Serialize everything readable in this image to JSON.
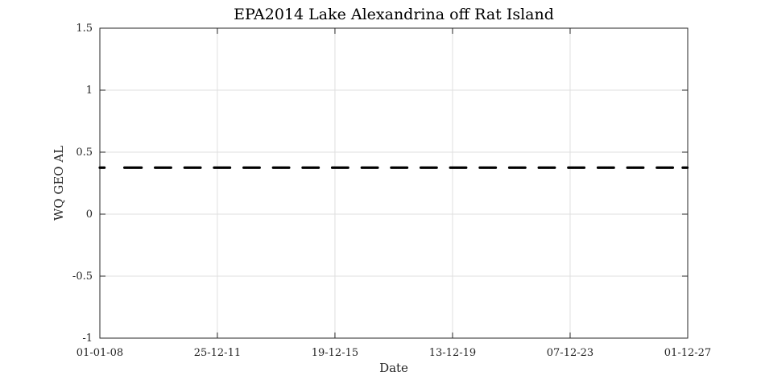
{
  "chart_data": {
    "type": "scatter",
    "title": "EPA2014 Lake Alexandrina off Rat Island",
    "xlabel": "Date",
    "ylabel": "WQ GEO AL",
    "x_axis_type": "date",
    "xlim": [
      "2008-01-01",
      "2027-12-01"
    ],
    "ylim": [
      -1,
      1.5
    ],
    "x_ticks": [
      "2008-01-01",
      "2011-12-25",
      "2015-12-19",
      "2019-12-13",
      "2023-12-07",
      "2027-12-01"
    ],
    "x_tick_labels": [
      "01-01-08",
      "25-12-11",
      "19-12-15",
      "13-12-19",
      "07-12-23",
      "01-12-27"
    ],
    "y_ticks": [
      -1,
      -0.5,
      0,
      0.5,
      1,
      1.5
    ],
    "y_tick_labels": [
      "-1",
      "-0.5",
      "0",
      "0.5",
      "1",
      "1.5"
    ],
    "grid": true,
    "marker_color": "#000000",
    "series": [
      {
        "constant_value": 0.375,
        "date_ranges": [
          [
            "2008-01-01",
            "2008-03-01"
          ],
          [
            "2008-11-01",
            "2009-06-01"
          ],
          [
            "2009-11-15",
            "2010-06-01"
          ],
          [
            "2010-11-15",
            "2011-06-01"
          ],
          [
            "2011-11-15",
            "2012-06-01"
          ],
          [
            "2012-11-15",
            "2013-06-01"
          ],
          [
            "2013-11-15",
            "2014-06-01"
          ],
          [
            "2014-11-15",
            "2015-06-01"
          ],
          [
            "2015-11-15",
            "2016-06-01"
          ],
          [
            "2016-11-15",
            "2017-06-01"
          ],
          [
            "2017-11-15",
            "2018-06-01"
          ],
          [
            "2018-11-15",
            "2019-06-01"
          ],
          [
            "2019-11-15",
            "2020-06-01"
          ],
          [
            "2020-11-15",
            "2021-06-01"
          ],
          [
            "2021-11-15",
            "2022-06-01"
          ],
          [
            "2022-11-15",
            "2023-06-01"
          ],
          [
            "2023-11-15",
            "2024-06-01"
          ],
          [
            "2024-11-15",
            "2025-06-01"
          ],
          [
            "2025-11-15",
            "2026-06-01"
          ],
          [
            "2026-11-15",
            "2027-06-01"
          ],
          [
            "2027-10-01",
            "2027-12-01"
          ]
        ]
      }
    ]
  }
}
